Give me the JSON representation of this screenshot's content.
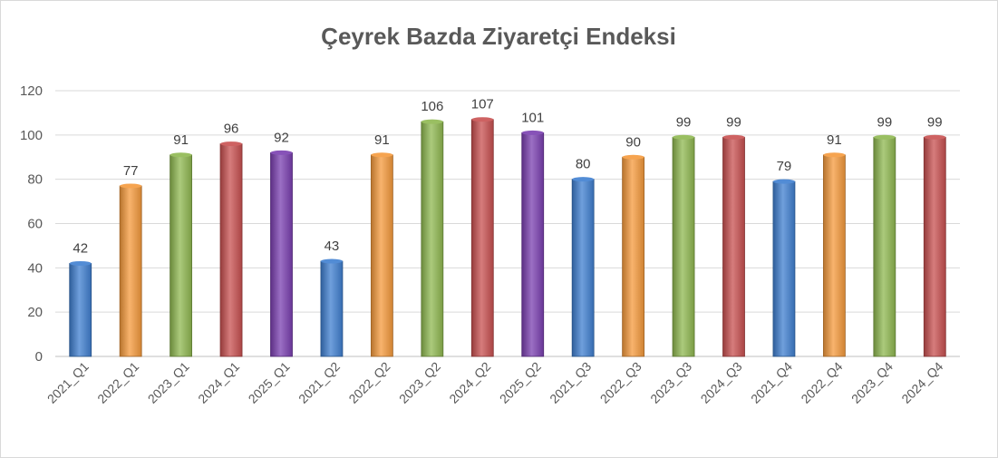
{
  "chart_data": {
    "type": "bar",
    "title": "Çeyrek Bazda Ziyaretçi Endeksi",
    "xlabel": "",
    "ylabel": "",
    "ylim": [
      0,
      120
    ],
    "yticks": [
      0,
      20,
      40,
      60,
      80,
      100,
      120
    ],
    "grid": true,
    "legend": "none",
    "groups": [
      {
        "categories": [
          "2021_Q1",
          "2022_Q1",
          "2023_Q1",
          "2024_Q1",
          "2025_Q1"
        ],
        "values": [
          42,
          77,
          91,
          96,
          92
        ]
      },
      {
        "categories": [
          "2021_Q2",
          "2022_Q2",
          "2023_Q2",
          "2024_Q2",
          "2025_Q2"
        ],
        "values": [
          43,
          91,
          106,
          107,
          101
        ]
      },
      {
        "categories": [
          "2021_Q3",
          "2022_Q3",
          "2023_Q3",
          "2024_Q3"
        ],
        "values": [
          80,
          90,
          99,
          99
        ]
      },
      {
        "categories": [
          "2021_Q4",
          "2022_Q4",
          "2023_Q4",
          "2024_Q4"
        ],
        "values": [
          79,
          91,
          99,
          99
        ]
      }
    ],
    "year_colors": {
      "2021": "#3f7fd0",
      "2022": "#f59a3c",
      "2023": "#8fb850",
      "2024": "#c85050",
      "2025": "#7a3fb0"
    }
  }
}
